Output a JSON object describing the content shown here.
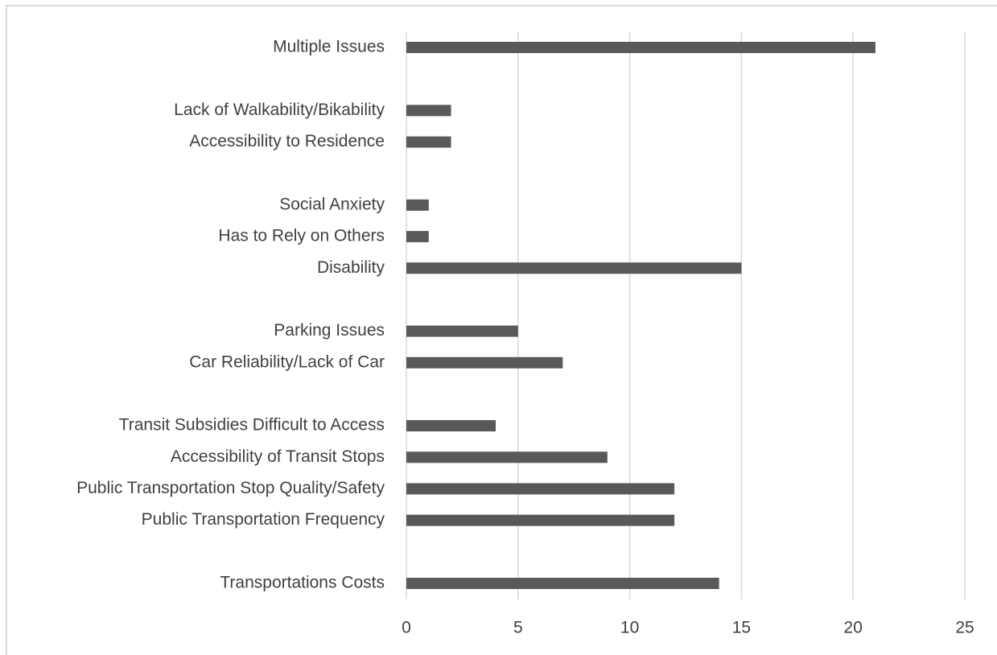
{
  "chart_data": {
    "type": "bar",
    "orientation": "horizontal",
    "categories": [
      "Multiple Issues",
      null,
      "Lack of Walkability/Bikability",
      "Accessibility to Residence",
      null,
      "Social Anxiety",
      "Has to Rely on Others",
      "Disability",
      null,
      "Parking Issues",
      "Car Reliability/Lack of Car",
      null,
      "Transit Subsidies Difficult to Access",
      "Accessibility of Transit Stops",
      "Public Transportation Stop Quality/Safety",
      "Public Transportation Frequency",
      null,
      "Transportations Costs"
    ],
    "values": [
      21,
      null,
      2,
      2,
      null,
      1,
      1,
      15,
      null,
      5,
      7,
      null,
      4,
      9,
      12,
      12,
      null,
      14
    ],
    "color": "#595959",
    "xlim": [
      0,
      25
    ],
    "xticks": [
      0,
      5,
      10,
      15,
      20,
      25
    ],
    "grid": true
  }
}
